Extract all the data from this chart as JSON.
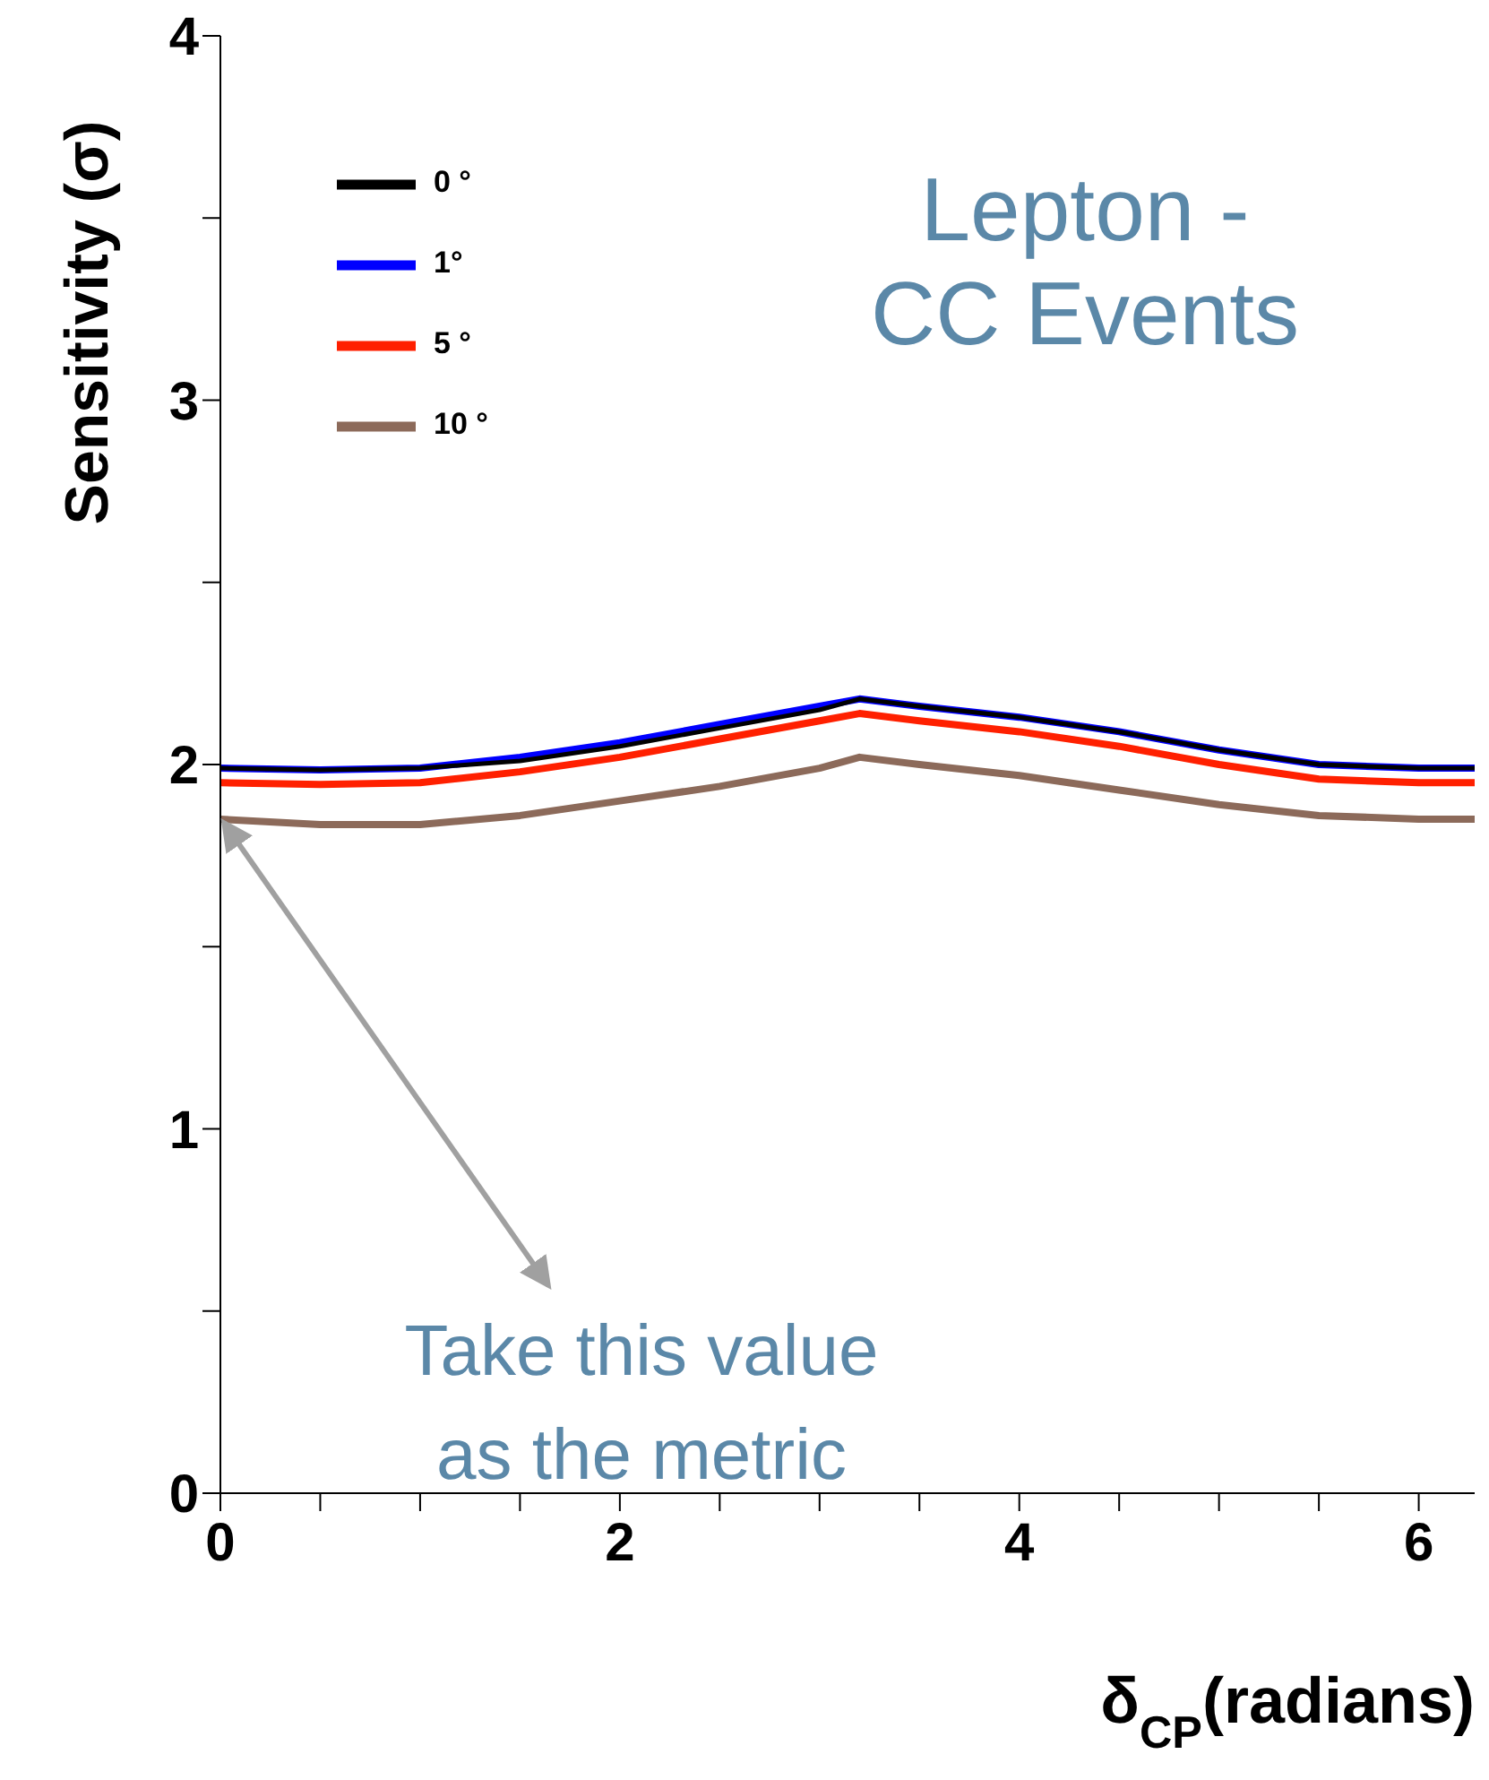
{
  "chart_data": {
    "type": "line",
    "xlabel": "δ$_{CP}$(radians)",
    "ylabel": "Sensitivity (σ)",
    "annotations": [
      "Lepton - CC Events",
      {
        "text": "Take this value as the metric",
        "x": 0,
        "y": 1.85
      }
    ],
    "x": [
      0,
      0.5,
      1,
      1.5,
      2,
      2.5,
      3,
      3.2,
      3.5,
      4,
      4.5,
      5,
      5.5,
      6,
      6.28
    ],
    "series": [
      {
        "name": "0 °",
        "color": "#000000",
        "values": [
          1.99,
          1.985,
          1.99,
          2.01,
          2.05,
          2.1,
          2.15,
          2.18,
          2.16,
          2.13,
          2.09,
          2.04,
          2.0,
          1.99,
          1.99
        ]
      },
      {
        "name": "1°",
        "color": "#0000ff",
        "values": [
          1.99,
          1.985,
          1.99,
          2.02,
          2.06,
          2.11,
          2.16,
          2.18,
          2.16,
          2.13,
          2.09,
          2.04,
          2.0,
          1.99,
          1.99
        ]
      },
      {
        "name": "5 °",
        "color": "#ff2000",
        "values": [
          1.95,
          1.945,
          1.95,
          1.98,
          2.02,
          2.07,
          2.12,
          2.14,
          2.12,
          2.09,
          2.05,
          2.0,
          1.96,
          1.95,
          1.95
        ]
      },
      {
        "name": "10 °",
        "color": "#8c6a5a",
        "values": [
          1.85,
          1.835,
          1.835,
          1.86,
          1.9,
          1.94,
          1.99,
          2.02,
          2.0,
          1.97,
          1.93,
          1.89,
          1.86,
          1.85,
          1.85
        ]
      }
    ],
    "xlim": [
      0,
      6.28
    ],
    "xticks": [
      0,
      {
        "value": 0.5,
        "label": null
      },
      {
        "value": 1,
        "label": null
      },
      {
        "value": 1.5,
        "label": null
      },
      2,
      {
        "value": 2.5,
        "label": null
      },
      {
        "value": 3,
        "label": null
      },
      {
        "value": 3.5,
        "label": null
      },
      4,
      {
        "value": 4.5,
        "label": null
      },
      {
        "value": 5,
        "label": null
      },
      {
        "value": 5.5,
        "label": null
      },
      6
    ],
    "ylim": [
      0,
      4
    ],
    "yticks": [
      0,
      {
        "value": 0.5,
        "label": null
      },
      1,
      {
        "value": 1.5,
        "label": null
      },
      2,
      {
        "value": 2.5,
        "label": null
      },
      3,
      {
        "value": 3.5,
        "label": null
      },
      4
    ],
    "legend": "top left",
    "marker": "none",
    "line_style": "solid",
    "grid": false
  }
}
